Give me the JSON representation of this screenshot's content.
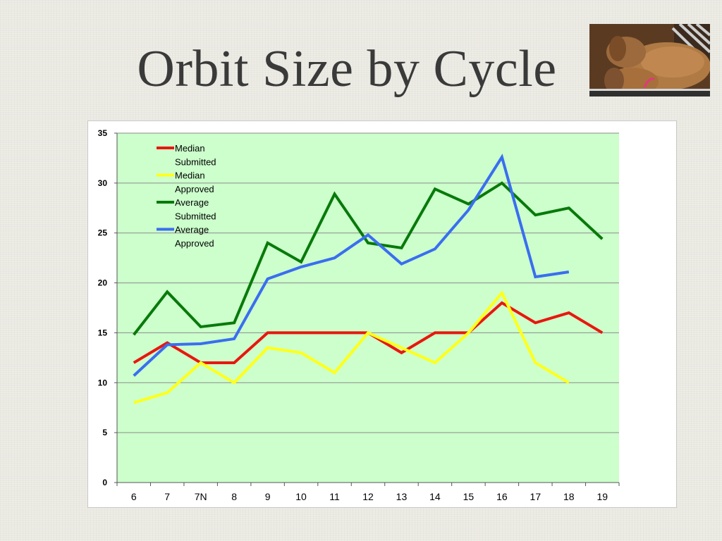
{
  "slide": {
    "title": "Orbit Size by Cycle"
  },
  "photo": {
    "subject": "two dachshunds sleeping on a striped cushion"
  },
  "colors": {
    "plot_background": "#ccffcc",
    "gridline": "#8c8c8c"
  },
  "chart_data": {
    "type": "line",
    "title": "",
    "xlabel": "",
    "ylabel": "",
    "categories": [
      "6",
      "7",
      "7N",
      "8",
      "9",
      "10",
      "11",
      "12",
      "13",
      "14",
      "15",
      "16",
      "17",
      "18",
      "19"
    ],
    "ylim": [
      0,
      35
    ],
    "yticks": [
      0,
      5,
      10,
      15,
      20,
      25,
      30,
      35
    ],
    "grid": true,
    "legend_position": "top-left",
    "series": [
      {
        "name": "Median Submitted",
        "legend_lines": [
          "Median",
          "Submitted"
        ],
        "color": "#e8170f",
        "values": [
          12,
          14,
          12,
          12,
          15,
          15,
          15,
          15,
          13,
          15,
          15,
          18,
          16,
          17,
          15
        ]
      },
      {
        "name": "Median Approved",
        "legend_lines": [
          "Median",
          "Approved"
        ],
        "color": "#ffff1a",
        "values": [
          8,
          9,
          12,
          10,
          13.5,
          13,
          11,
          15,
          13.5,
          12,
          15,
          19,
          12,
          10,
          null
        ]
      },
      {
        "name": "Average Submitted",
        "legend_lines": [
          "Average",
          "Submitted"
        ],
        "color": "#087a0a",
        "values": [
          14.8,
          19.1,
          15.6,
          16,
          24,
          22.1,
          28.9,
          24,
          23.5,
          29.4,
          27.9,
          30,
          26.8,
          27.5,
          24.4
        ]
      },
      {
        "name": "Average Approved",
        "legend_lines": [
          "Average",
          "Approved"
        ],
        "color": "#3a6ef0",
        "values": [
          10.7,
          13.8,
          13.9,
          14.4,
          20.4,
          21.6,
          22.5,
          24.8,
          21.9,
          23.4,
          27.3,
          32.6,
          20.6,
          21.1,
          null
        ]
      }
    ]
  }
}
